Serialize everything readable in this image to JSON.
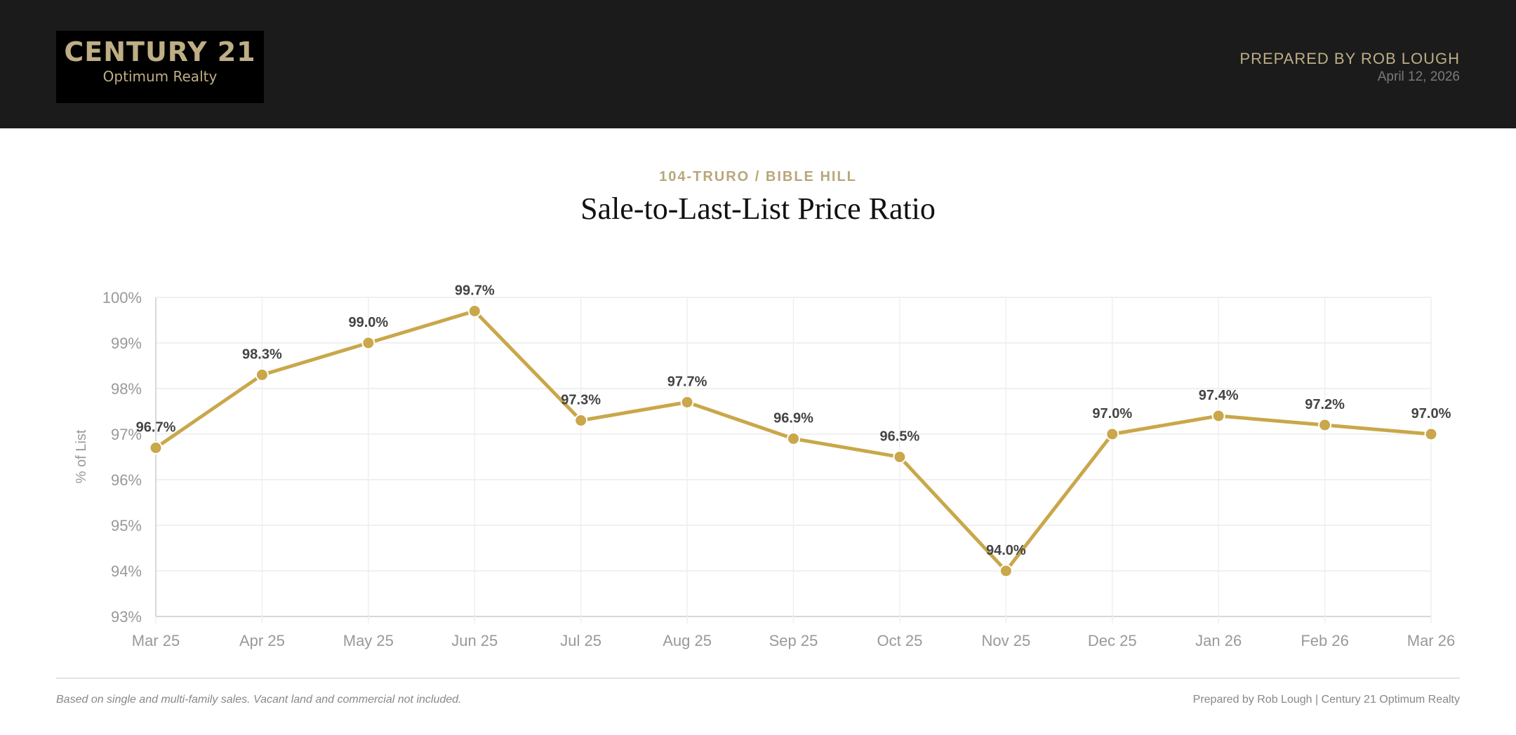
{
  "header": {
    "logo": {
      "line1": "CENTURY 21",
      "line2": "Optimum Realty"
    },
    "prepared_by": "PREPARED BY ROB LOUGH",
    "date": "April 12, 2026"
  },
  "subtitle": "104-TRURO / BIBLE HILL",
  "title": "Sale-to-Last-List Price Ratio",
  "chart_data": {
    "type": "line",
    "title": "Sale-to-Last-List Price Ratio",
    "ylabel": "% of List",
    "xlabel": "",
    "categories": [
      "Mar 25",
      "Apr 25",
      "May 25",
      "Jun 25",
      "Jul 25",
      "Aug 25",
      "Sep 25",
      "Oct 25",
      "Nov 25",
      "Dec 25",
      "Jan 26",
      "Feb 26",
      "Mar 26"
    ],
    "values": [
      96.7,
      98.3,
      99.0,
      99.7,
      97.3,
      97.7,
      96.9,
      96.5,
      94.0,
      97.0,
      97.4,
      97.2,
      97.0
    ],
    "data_labels": [
      "96.7%",
      "98.3%",
      "99.0%",
      "99.7%",
      "97.3%",
      "97.7%",
      "96.9%",
      "96.5%",
      "94.0%",
      "97.0%",
      "97.4%",
      "97.2%",
      "97.0%"
    ],
    "ylim": [
      93,
      100
    ],
    "yticks": [
      "93%",
      "94%",
      "95%",
      "96%",
      "97%",
      "98%",
      "99%",
      "100%"
    ],
    "grid": true,
    "legend": "none",
    "line_color": "#c9a74a"
  },
  "footer": {
    "note": "Based on single and multi-family sales. Vacant land and commercial not included.",
    "credit": "Prepared by Rob Lough | Century 21 Optimum Realty"
  }
}
